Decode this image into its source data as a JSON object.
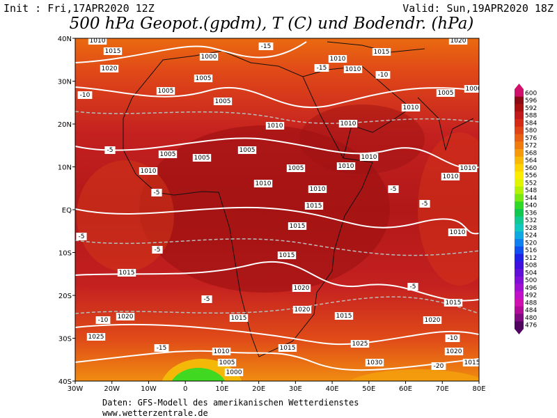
{
  "header": {
    "init": "Init : Fri,17APR2020 12Z",
    "valid": "Valid: Sun,19APR2020 18Z",
    "title": "500 hPa Geopot.(gpdm), T (C) und Bodendr. (hPa)"
  },
  "axes": {
    "lon_labels": [
      "30W",
      "20W",
      "10W",
      "0",
      "10E",
      "20E",
      "30E",
      "40E",
      "50E",
      "60E",
      "70E",
      "80E"
    ],
    "lat_labels": [
      "40N",
      "30N",
      "20N",
      "10N",
      "EQ",
      "10S",
      "20S",
      "30S",
      "40S"
    ]
  },
  "colorbar": {
    "levels": [
      600,
      596,
      592,
      588,
      584,
      580,
      576,
      572,
      568,
      564,
      560,
      556,
      552,
      548,
      544,
      540,
      536,
      532,
      528,
      524,
      520,
      516,
      512,
      508,
      504,
      500,
      496,
      492,
      488,
      484,
      480,
      476
    ],
    "colors": [
      "#d0106a",
      "#8c0a14",
      "#a81010",
      "#c21a1a",
      "#d42a16",
      "#e04416",
      "#e86014",
      "#f07c10",
      "#f49a0c",
      "#f8b808",
      "#fcd404",
      "#fcec04",
      "#e0f404",
      "#b4f008",
      "#78e810",
      "#30d828",
      "#10c850",
      "#10c890",
      "#10c8c0",
      "#10a8e0",
      "#1080f0",
      "#1050f0",
      "#2020e8",
      "#4010e0",
      "#6010d8",
      "#8010d8",
      "#a010d0",
      "#c010c8",
      "#d010b0",
      "#b00c98",
      "#800a80",
      "#500660"
    ]
  },
  "contour_labels": [
    "1010",
    "1015",
    "1020",
    "1000",
    "1005",
    "1005",
    "1005",
    "-10",
    "1010",
    "1010",
    "1010",
    "1005",
    "1000",
    "1015",
    "1010",
    "1010",
    "-15",
    "-10",
    "-15",
    "1020",
    "1005",
    "1005",
    "1005",
    "1010",
    "1005",
    "1010",
    "1010",
    "1010",
    "1010",
    "1010",
    "1010",
    "1015",
    "1015",
    "1010",
    "1015",
    "1015",
    "1020",
    "1020",
    "1015",
    "1015",
    "1015",
    "1020",
    "1020",
    "1025",
    "1015",
    "1025",
    "1010",
    "1005",
    "1000",
    "1030",
    "1020",
    "1015",
    "-5",
    "-5",
    "-5",
    "-5",
    "-5",
    "-5",
    "-5",
    "-10",
    "-15",
    "-5",
    "-20",
    "-10"
  ],
  "footer": [
    "Daten: GFS-Modell des amerikanischen Wetterdienstes",
    "www.wetterzentrale.de"
  ]
}
